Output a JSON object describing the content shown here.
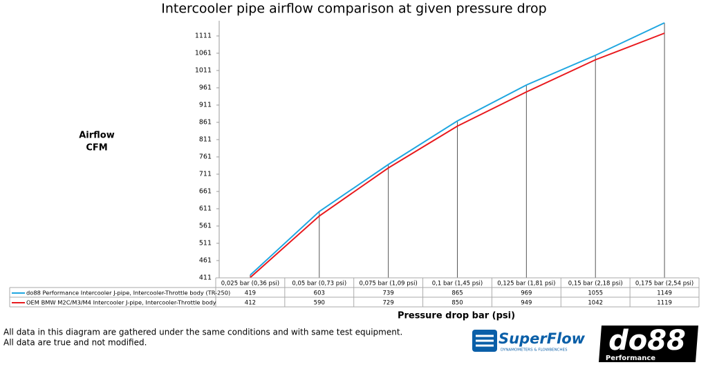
{
  "chart_data": {
    "type": "line",
    "title": "Intercooler pipe airflow comparison at given pressure drop",
    "y_label": [
      "Airflow",
      "CFM"
    ],
    "x_label": "Pressure drop bar (psi)",
    "categories": [
      "0,025 bar (0,36 psi)",
      "0,05 bar (0,73 psi)",
      "0,075 bar (1,09 psi)",
      "0,1 bar (1,45 psi)",
      "0,125 bar (1,81 psi)",
      "0,15 bar (2,18 psi)",
      "0,175 bar (2,54 psi)"
    ],
    "series": [
      {
        "name": "do88 Performance Intercooler J-pipe, Intercooler-Throttle body (TR-250)",
        "color": "#1ea6e0",
        "values": [
          419,
          603,
          739,
          865,
          969,
          1055,
          1149
        ]
      },
      {
        "name": "OEM BMW M2C/M3/M4 Intercooler J-pipe, Intercooler-Throttle body",
        "color": "#e8191d",
        "values": [
          412,
          590,
          729,
          850,
          949,
          1042,
          1119
        ]
      }
    ],
    "ylim": [
      411,
      1155
    ],
    "yticks": [
      411,
      461,
      511,
      561,
      611,
      661,
      711,
      761,
      811,
      861,
      911,
      961,
      1011,
      1061,
      1111
    ],
    "grid": false,
    "drop_lines": true
  },
  "footer": {
    "notes": [
      "All data in this diagram are gathered under the same conditions and with same test equipment.",
      "All data are true and not modified."
    ],
    "superflow": {
      "name": "SuperFlow",
      "tagline": "DYNAMOMETERS & FLOWBENCHES"
    },
    "do88": {
      "name": "do88",
      "tagline": "Performance"
    }
  }
}
